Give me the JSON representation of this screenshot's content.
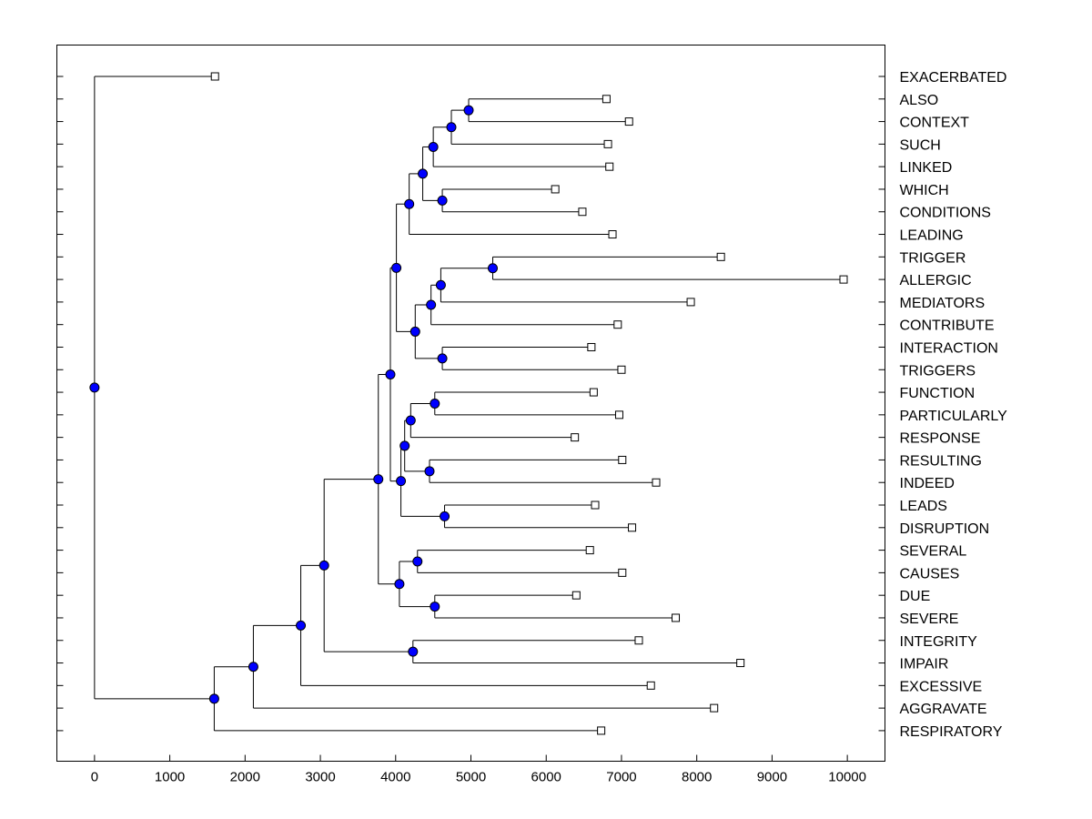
{
  "chart_data": {
    "type": "dendrogram",
    "xlim": [
      -500,
      10500
    ],
    "x_ticks": [
      0,
      1000,
      2000,
      3000,
      4000,
      5000,
      6000,
      7000,
      8000,
      9000,
      10000
    ],
    "x_tick_labels": [
      "0",
      "1000",
      "2000",
      "3000",
      "4000",
      "5000",
      "6000",
      "7000",
      "8000",
      "9000",
      "10000"
    ],
    "leaves": [
      {
        "label": "EXACERBATED",
        "x": 1600
      },
      {
        "label": "ALSO",
        "x": 6800
      },
      {
        "label": "CONTEXT",
        "x": 7100
      },
      {
        "label": "SUCH",
        "x": 6820
      },
      {
        "label": "LINKED",
        "x": 6840
      },
      {
        "label": "WHICH",
        "x": 6120
      },
      {
        "label": "CONDITIONS",
        "x": 6480
      },
      {
        "label": "LEADING",
        "x": 6880
      },
      {
        "label": "TRIGGER",
        "x": 8320
      },
      {
        "label": "ALLERGIC",
        "x": 9950
      },
      {
        "label": "MEDIATORS",
        "x": 7920
      },
      {
        "label": "CONTRIBUTE",
        "x": 6950
      },
      {
        "label": "INTERACTION",
        "x": 6600
      },
      {
        "label": "TRIGGERS",
        "x": 7000
      },
      {
        "label": "FUNCTION",
        "x": 6630
      },
      {
        "label": "PARTICULARLY",
        "x": 6970
      },
      {
        "label": "RESPONSE",
        "x": 6380
      },
      {
        "label": "RESULTING",
        "x": 7010
      },
      {
        "label": "INDEED",
        "x": 7460
      },
      {
        "label": "LEADS",
        "x": 6650
      },
      {
        "label": "DISRUPTION",
        "x": 7140
      },
      {
        "label": "SEVERAL",
        "x": 6580
      },
      {
        "label": "CAUSES",
        "x": 7010
      },
      {
        "label": "DUE",
        "x": 6400
      },
      {
        "label": "SEVERE",
        "x": 7720
      },
      {
        "label": "INTEGRITY",
        "x": 7230
      },
      {
        "label": "IMPAIR",
        "x": 8580
      },
      {
        "label": "EXCESSIVE",
        "x": 7390
      },
      {
        "label": "AGGRAVATE",
        "x": 8230
      },
      {
        "label": "RESPIRATORY",
        "x": 6730
      }
    ],
    "merges": [
      {
        "id": "n_also_context",
        "x": 4970,
        "children": [
          "ALSO",
          "CONTEXT"
        ]
      },
      {
        "id": "n_such",
        "x": 4740,
        "children": [
          "n_also_context",
          "SUCH"
        ]
      },
      {
        "id": "n_linked",
        "x": 4500,
        "children": [
          "n_such",
          "LINKED"
        ]
      },
      {
        "id": "n_which_conditions",
        "x": 4620,
        "children": [
          "WHICH",
          "CONDITIONS"
        ]
      },
      {
        "id": "n_linked_which",
        "x": 4360,
        "children": [
          "n_linked",
          "n_which_conditions"
        ]
      },
      {
        "id": "n_leading",
        "x": 4180,
        "children": [
          "n_linked_which",
          "LEADING"
        ]
      },
      {
        "id": "n_trigger_allergic",
        "x": 5290,
        "children": [
          "TRIGGER",
          "ALLERGIC"
        ]
      },
      {
        "id": "n_mediators",
        "x": 4600,
        "children": [
          "n_trigger_allergic",
          "MEDIATORS"
        ]
      },
      {
        "id": "n_contribute",
        "x": 4470,
        "children": [
          "n_mediators",
          "CONTRIBUTE"
        ]
      },
      {
        "id": "n_interaction_triggers",
        "x": 4620,
        "children": [
          "INTERACTION",
          "TRIGGERS"
        ]
      },
      {
        "id": "n_allergic_group",
        "x": 4260,
        "children": [
          "n_contribute",
          "n_interaction_triggers"
        ]
      },
      {
        "id": "n_upper",
        "x": 4010,
        "children": [
          "n_leading",
          "n_allergic_group"
        ]
      },
      {
        "id": "n_function_particularly",
        "x": 4520,
        "children": [
          "FUNCTION",
          "PARTICULARLY"
        ]
      },
      {
        "id": "n_response",
        "x": 4200,
        "children": [
          "n_function_particularly",
          "RESPONSE"
        ]
      },
      {
        "id": "n_resulting_indeed",
        "x": 4450,
        "children": [
          "RESULTING",
          "INDEED"
        ]
      },
      {
        "id": "n_response_resulting",
        "x": 4120,
        "children": [
          "n_response",
          "n_resulting_indeed"
        ]
      },
      {
        "id": "n_leads_disruption",
        "x": 4650,
        "children": [
          "LEADS",
          "DISRUPTION"
        ]
      },
      {
        "id": "n_function_group",
        "x": 4070,
        "children": [
          "n_response_resulting",
          "n_leads_disruption"
        ]
      },
      {
        "id": "n_mid",
        "x": 3930,
        "children": [
          "n_upper",
          "n_function_group"
        ]
      },
      {
        "id": "n_several_causes",
        "x": 4290,
        "children": [
          "SEVERAL",
          "CAUSES"
        ]
      },
      {
        "id": "n_due_severe",
        "x": 4520,
        "children": [
          "DUE",
          "SEVERE"
        ]
      },
      {
        "id": "n_several_group",
        "x": 4050,
        "children": [
          "n_several_causes",
          "n_due_severe"
        ]
      },
      {
        "id": "n_big",
        "x": 3770,
        "children": [
          "n_mid",
          "n_several_group"
        ]
      },
      {
        "id": "n_integrity_impair",
        "x": 4230,
        "children": [
          "INTEGRITY",
          "IMPAIR"
        ]
      },
      {
        "id": "n_big2",
        "x": 3050,
        "children": [
          "n_big",
          "n_integrity_impair"
        ]
      },
      {
        "id": "n_excessive",
        "x": 2740,
        "children": [
          "n_big2",
          "EXCESSIVE"
        ]
      },
      {
        "id": "n_aggravate",
        "x": 2110,
        "children": [
          "n_excessive",
          "AGGRAVATE"
        ]
      },
      {
        "id": "n_respiratory",
        "x": 1590,
        "children": [
          "n_aggravate",
          "RESPIRATORY"
        ]
      },
      {
        "id": "n_root",
        "x": 0,
        "children": [
          "EXACERBATED",
          "n_respiratory"
        ]
      }
    ],
    "colors": {
      "node_fill": "#0000ff",
      "line": "#000000",
      "leaf_fill": "#ffffff"
    }
  }
}
